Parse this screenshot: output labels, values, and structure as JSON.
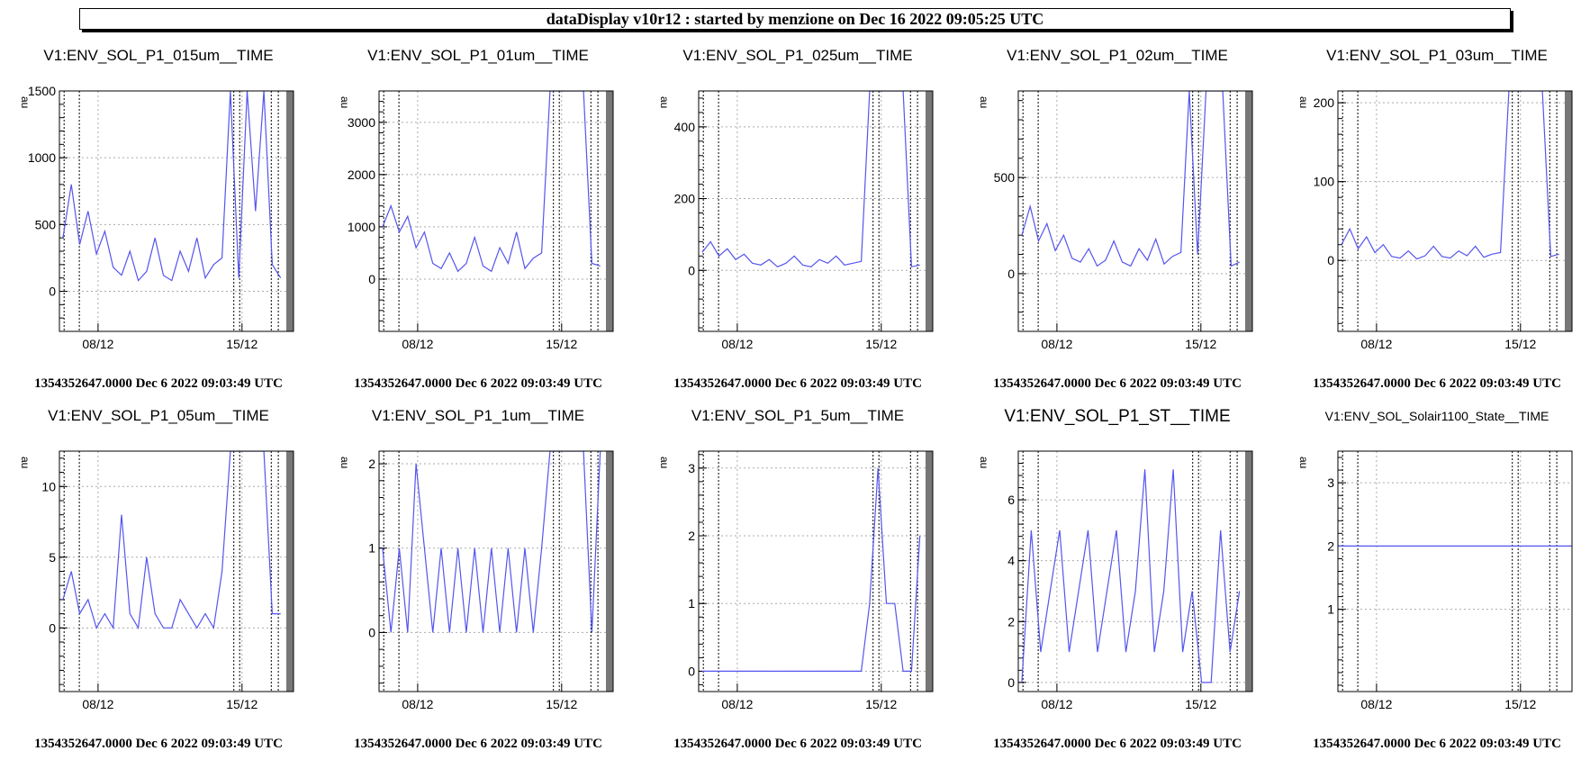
{
  "header": {
    "title": "dataDisplay v10r12 : started by menzione on Dec 16 2022 09:05:25 UTC"
  },
  "footer_text": "1354352647.0000 Dec 6 2022 09:03:49 UTC",
  "colors": {
    "trace": "#5555ee",
    "axis": "#000000",
    "grid": "#aaaaaa",
    "title_box_shadow": "#000000"
  },
  "chart_data": [
    {
      "type": "line",
      "title": "V1:ENV_SOL_P1_015um__TIME",
      "ylabel": "au",
      "ylim": [
        -300,
        1500
      ],
      "yticks": [
        0,
        500,
        1000,
        1500
      ],
      "xticks": [
        "08/12",
        "15/12"
      ],
      "series": [
        {
          "values": [
            400,
            800,
            350,
            600,
            280,
            450,
            180,
            120,
            300,
            80,
            150,
            400,
            120,
            80,
            300,
            150,
            400,
            100,
            200,
            250,
            1500,
            100,
            1500,
            600,
            1500,
            200,
            100
          ]
        }
      ]
    },
    {
      "type": "line",
      "title": "V1:ENV_SOL_P1_01um__TIME",
      "ylabel": "au",
      "ylim": [
        -1000,
        3600
      ],
      "yticks": [
        0,
        1000,
        2000,
        3000
      ],
      "xticks": [
        "08/12",
        "15/12"
      ],
      "series": [
        {
          "values": [
            1000,
            1400,
            900,
            1200,
            600,
            900,
            300,
            200,
            500,
            150,
            300,
            800,
            250,
            150,
            600,
            300,
            900,
            200,
            400,
            500,
            3600,
            3600,
            3600,
            3600,
            3600,
            300,
            250
          ]
        }
      ]
    },
    {
      "type": "line",
      "title": "V1:ENV_SOL_P1_025um__TIME",
      "ylabel": "au",
      "ylim": [
        -170,
        500
      ],
      "yticks": [
        0,
        200,
        400
      ],
      "xticks": [
        "08/12",
        "15/12"
      ],
      "series": [
        {
          "values": [
            50,
            80,
            40,
            60,
            30,
            45,
            20,
            15,
            30,
            10,
            20,
            40,
            15,
            10,
            30,
            20,
            40,
            15,
            20,
            25,
            500,
            500,
            500,
            500,
            500,
            10,
            15
          ]
        }
      ]
    },
    {
      "type": "line",
      "title": "V1:ENV_SOL_P1_02um__TIME",
      "ylabel": "au",
      "ylim": [
        -300,
        950
      ],
      "yticks": [
        0,
        500
      ],
      "xticks": [
        "08/12",
        "15/12"
      ],
      "series": [
        {
          "values": [
            200,
            350,
            170,
            260,
            120,
            200,
            80,
            60,
            130,
            40,
            70,
            170,
            60,
            40,
            130,
            70,
            180,
            50,
            90,
            110,
            950,
            100,
            950,
            950,
            950,
            40,
            60
          ]
        }
      ]
    },
    {
      "type": "line",
      "title": "V1:ENV_SOL_P1_03um__TIME",
      "ylabel": "au",
      "ylim": [
        -90,
        215
      ],
      "yticks": [
        0,
        100,
        200
      ],
      "xticks": [
        "08/12",
        "15/12"
      ],
      "series": [
        {
          "values": [
            20,
            40,
            15,
            30,
            10,
            20,
            5,
            3,
            12,
            2,
            6,
            18,
            5,
            3,
            12,
            6,
            18,
            4,
            8,
            10,
            215,
            215,
            215,
            215,
            215,
            5,
            8
          ]
        }
      ]
    },
    {
      "type": "line",
      "title": "V1:ENV_SOL_P1_05um__TIME",
      "ylabel": "au",
      "ylim": [
        -4.5,
        12.5
      ],
      "yticks": [
        0,
        5,
        10
      ],
      "xticks": [
        "08/12",
        "15/12"
      ],
      "series": [
        {
          "values": [
            2,
            4,
            1,
            2,
            0,
            1,
            0,
            8,
            1,
            0,
            5,
            1,
            0,
            0,
            2,
            1,
            0,
            1,
            0,
            4,
            12.5,
            12.5,
            12.5,
            12.5,
            12.5,
            1,
            1
          ]
        }
      ]
    },
    {
      "type": "line",
      "title": "V1:ENV_SOL_P1_1um__TIME",
      "ylabel": "au",
      "ylim": [
        -0.7,
        2.15
      ],
      "yticks": [
        0,
        1,
        2
      ],
      "xticks": [
        "08/12",
        "15/12"
      ],
      "series": [
        {
          "values": [
            1,
            0,
            1,
            0,
            2,
            1,
            0,
            1,
            0,
            1,
            0,
            1,
            0,
            1,
            0,
            1,
            0,
            1,
            0,
            1,
            2.15,
            2.15,
            2.15,
            2.15,
            2.15,
            0,
            2.15
          ]
        }
      ]
    },
    {
      "type": "line",
      "title": "V1:ENV_SOL_P1_5um__TIME",
      "ylabel": "au",
      "ylim": [
        -0.3,
        3.25
      ],
      "yticks": [
        0,
        1,
        2,
        3
      ],
      "xticks": [
        "08/12",
        "15/12"
      ],
      "series": [
        {
          "values": [
            0,
            0,
            0,
            0,
            0,
            0,
            0,
            0,
            0,
            0,
            0,
            0,
            0,
            0,
            0,
            0,
            0,
            0,
            0,
            0,
            1,
            3,
            1,
            1,
            0,
            0,
            2
          ]
        }
      ]
    },
    {
      "type": "line",
      "title": "V1:ENV_SOL_P1_ST__TIME",
      "ylabel": "au",
      "ylim": [
        -0.3,
        7.6
      ],
      "yticks": [
        0,
        2,
        4,
        6
      ],
      "xticks": [
        "08/12",
        "15/12"
      ],
      "series": [
        {
          "values": [
            0,
            5,
            1,
            3,
            5,
            1,
            3,
            5,
            1,
            3,
            5,
            1,
            3,
            7,
            1,
            3,
            7,
            1,
            3,
            0,
            0,
            5,
            1,
            3
          ]
        }
      ]
    },
    {
      "type": "line",
      "title": "V1:ENV_SOL_Solair1100_State__TIME",
      "ylabel": "au",
      "ylim": [
        -0.3,
        3.5
      ],
      "yticks": [
        1,
        2,
        3
      ],
      "xticks": [
        "08/12",
        "15/12"
      ],
      "series": [
        {
          "values": [
            2,
            2
          ]
        }
      ]
    }
  ]
}
